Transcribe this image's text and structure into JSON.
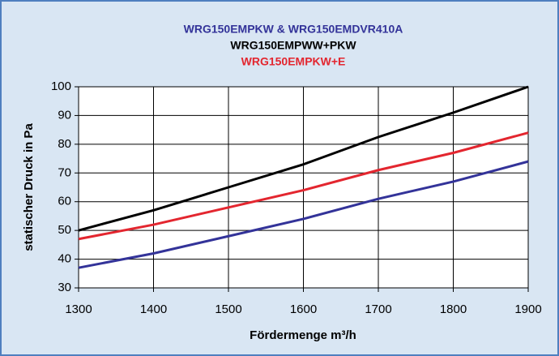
{
  "chart_data": {
    "type": "line",
    "x": [
      1300,
      1400,
      1500,
      1600,
      1700,
      1800,
      1900
    ],
    "series": [
      {
        "name": "WRG150EMPKW & WRG150EMDVR410A",
        "color": "#333399",
        "values": [
          37,
          42,
          48,
          54,
          61,
          67,
          74
        ]
      },
      {
        "name": "WRG150EMPWW+PKW",
        "color": "#000000",
        "values": [
          50,
          57,
          65,
          73,
          82.5,
          91,
          100
        ]
      },
      {
        "name": "WRG150EMPKW+E",
        "color": "#e3262f",
        "values": [
          47,
          52,
          58,
          64,
          71,
          77,
          84
        ]
      }
    ],
    "x_label": "Fördermenge m³/h",
    "y_label": "statischer Druck in Pa",
    "xlim": [
      1300,
      1900
    ],
    "xticks": [
      1300,
      1400,
      1500,
      1600,
      1700,
      1800,
      1900
    ],
    "ylim": [
      30,
      100
    ],
    "yticks": [
      30,
      40,
      50,
      60,
      70,
      80,
      90,
      100
    ],
    "grid": true,
    "legend": "top"
  }
}
